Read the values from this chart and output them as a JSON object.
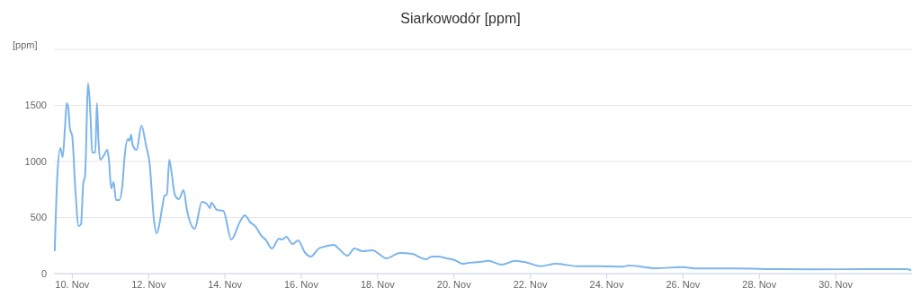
{
  "chart_data": {
    "type": "line",
    "title": "Siarkowodór [ppm]",
    "ylabel": "[ppm]",
    "x": [
      "--11-09T13:00",
      "--11-09T14:30",
      "--11-09T16:30",
      "--11-09T18:00",
      "--11-09T19:30",
      "--11-09T20:30",
      "--11-09T21:30",
      "--11-09T22:30",
      "--11-10T00:00",
      "--11-10T02:00",
      "--11-10T04:00",
      "--11-10T05:30",
      "--11-10T07:00",
      "--11-10T08:00",
      "--11-10T10:00",
      "--11-10T11:30",
      "--11-10T12:30",
      "--11-10T14:30",
      "--11-10T15:30",
      "--11-10T16:30",
      "--11-10T17:30",
      "--11-10T20:00",
      "--11-10T22:00",
      "--11-10T23:00",
      "--11-11T00:30",
      "--11-11T02:00",
      "--11-11T03:30",
      "--11-11T05:30",
      "--11-11T07:30",
      "--11-11T09:00",
      "--11-11T11:00",
      "--11-11T12:00",
      "--11-11T13:00",
      "--11-11T14:00",
      "--11-11T16:30",
      "--11-11T19:30",
      "--11-11T22:30",
      "--11-12T00:30",
      "--11-12T03:30",
      "--11-12T05:00",
      "--11-12T09:00",
      "--11-12T10:00",
      "--11-12T11:30",
      "--11-12T13:00",
      "--11-12T14:30",
      "--11-12T16:30",
      "--11-12T19:00",
      "--11-12T22:00",
      "--11-13T00:00",
      "--11-13T05:00",
      "--11-13T09:30",
      "--11-13T12:30",
      "--11-13T14:30",
      "--11-13T15:30",
      "--11-13T19:00",
      "--11-13T23:00",
      "--11-14T04:00",
      "--11-14T09:30",
      "--11-14T12:30",
      "--11-14T16:00",
      "--11-14T19:00",
      "--11-14T23:00",
      "--11-15T01:30",
      "--11-15T05:30",
      "--11-15T10:00",
      "--11-15T12:00",
      "--11-15T14:30",
      "--11-15T18:30",
      "--11-15T22:00",
      "--11-16T02:30",
      "--11-16T06:00",
      "--11-16T11:00",
      "--11-16T14:30",
      "--11-16T20:30",
      "--11-17T00:00",
      "--11-17T05:00",
      "--11-17T09:30",
      "--11-17T14:30",
      "--11-17T21:00",
      "--11-18T00:00",
      "--11-18T05:30",
      "--11-18T14:00",
      "--11-18T22:00",
      "--11-19T01:30",
      "--11-19T06:30",
      "--11-19T10:00",
      "--11-19T14:00",
      "--11-19T19:30",
      "--11-20T00:30",
      "--11-20T05:30",
      "--11-20T09:00",
      "--11-20T16:30",
      "--11-20T21:30",
      "--11-21T06:00",
      "--11-21T14:30",
      "--11-21T22:00",
      "--11-22T06:30",
      "--11-22T16:00",
      "--11-23T05:30",
      "--11-23T19:00",
      "--11-24T10:00",
      "--11-24T14:00",
      "--11-25T07:00",
      "--11-26T00:00",
      "--11-26T07:30",
      "--11-27T08:00",
      "--11-28T13:00",
      "--11-29T10:00",
      "--11-30T18:00",
      "--12-01T20:30",
      "--12-01T23:30"
    ],
    "values": [
      200,
      840,
      1120,
      1040,
      1320,
      1520,
      1480,
      1296,
      1224,
      736,
      424,
      440,
      816,
      864,
      1696,
      1400,
      1080,
      1080,
      1520,
      1184,
      1016,
      1056,
      1104,
      1024,
      760,
      816,
      656,
      656,
      784,
      1056,
      1200,
      1184,
      1240,
      1144,
      1104,
      1320,
      1136,
      1000,
      464,
      360,
      624,
      696,
      704,
      1016,
      896,
      704,
      664,
      744,
      576,
      400,
      640,
      624,
      584,
      632,
      568,
      560,
      304,
      464,
      520,
      456,
      424,
      336,
      304,
      224,
      312,
      304,
      328,
      264,
      296,
      184,
      152,
      224,
      240,
      256,
      216,
      160,
      224,
      200,
      208,
      184,
      136,
      184,
      176,
      152,
      128,
      152,
      152,
      136,
      120,
      88,
      96,
      104,
      114,
      80,
      114,
      98,
      66,
      88,
      66,
      66,
      62,
      72,
      48,
      58,
      46,
      46,
      40,
      38,
      40,
      40,
      30
    ],
    "color": "#7cb5ec",
    "marker": "none",
    "grid": "y",
    "xlim": [
      "--11-09T12:30",
      "--12-02T00:00"
    ],
    "xticks": [
      {
        "value": "--11-10",
        "label": "10. Nov"
      },
      {
        "value": "--11-12",
        "label": "12. Nov"
      },
      {
        "value": "--11-14",
        "label": "14. Nov"
      },
      {
        "value": "--11-16",
        "label": "16. Nov"
      },
      {
        "value": "--11-18",
        "label": "18. Nov"
      },
      {
        "value": "--11-20",
        "label": "20. Nov"
      },
      {
        "value": "--11-22",
        "label": "22. Nov"
      },
      {
        "value": "--11-24",
        "label": "24. Nov"
      },
      {
        "value": "--11-26",
        "label": "26. Nov"
      },
      {
        "value": "--11-28",
        "label": "28. Nov"
      },
      {
        "value": "--11-30",
        "label": "30. Nov"
      }
    ],
    "ylim": [
      0,
      2000
    ],
    "yticks": [
      0,
      500,
      1000,
      1500,
      {
        "value": 2000,
        "label": null
      }
    ]
  }
}
